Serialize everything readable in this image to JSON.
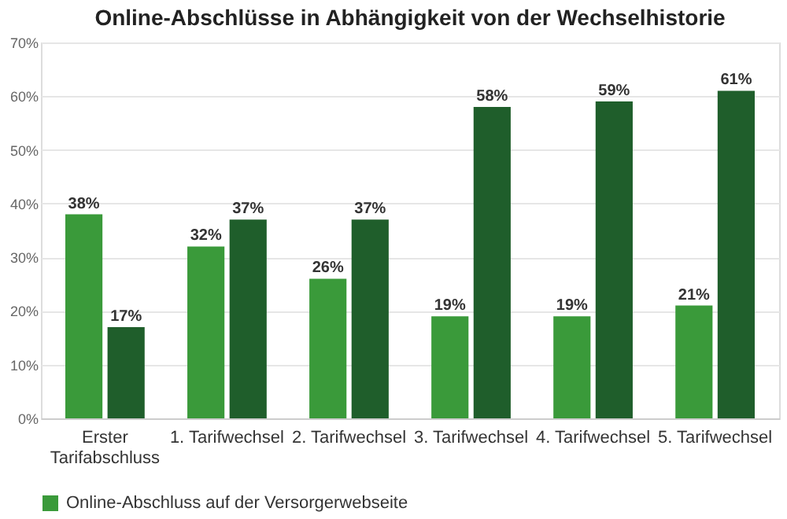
{
  "chart_data": {
    "type": "bar",
    "title": "Online-Abschlüsse in Abhängigkeit von der Wechselhistorie",
    "categories": [
      "Erster Tarifabschluss",
      "1. Tarifwechsel",
      "2. Tarifwechsel",
      "3. Tarifwechsel",
      "4. Tarifwechsel",
      "5. Tarifwechsel"
    ],
    "series": [
      {
        "name": "Online-Abschluss auf der Versorgerwebseite",
        "color": "#3a9a3a",
        "values": [
          38,
          32,
          26,
          19,
          19,
          21
        ],
        "value_labels": [
          "38%",
          "32%",
          "26%",
          "19%",
          "19%",
          "21%"
        ]
      },
      {
        "color": "#1f5e2b",
        "values": [
          17,
          37,
          37,
          58,
          59,
          61
        ],
        "value_labels": [
          "17%",
          "37%",
          "37%",
          "58%",
          "59%",
          "61%"
        ]
      }
    ],
    "ylim": [
      0,
      70
    ],
    "yticks": [
      {
        "value": 0,
        "label": "0%"
      },
      {
        "value": 10,
        "label": "10%"
      },
      {
        "value": 20,
        "label": "20%"
      },
      {
        "value": 30,
        "label": "30%"
      },
      {
        "value": 40,
        "label": "40%"
      },
      {
        "value": 50,
        "label": "50%"
      },
      {
        "value": 60,
        "label": "60%"
      },
      {
        "value": 70,
        "label": "70%"
      }
    ],
    "grid": "y",
    "legend": "bottom"
  }
}
